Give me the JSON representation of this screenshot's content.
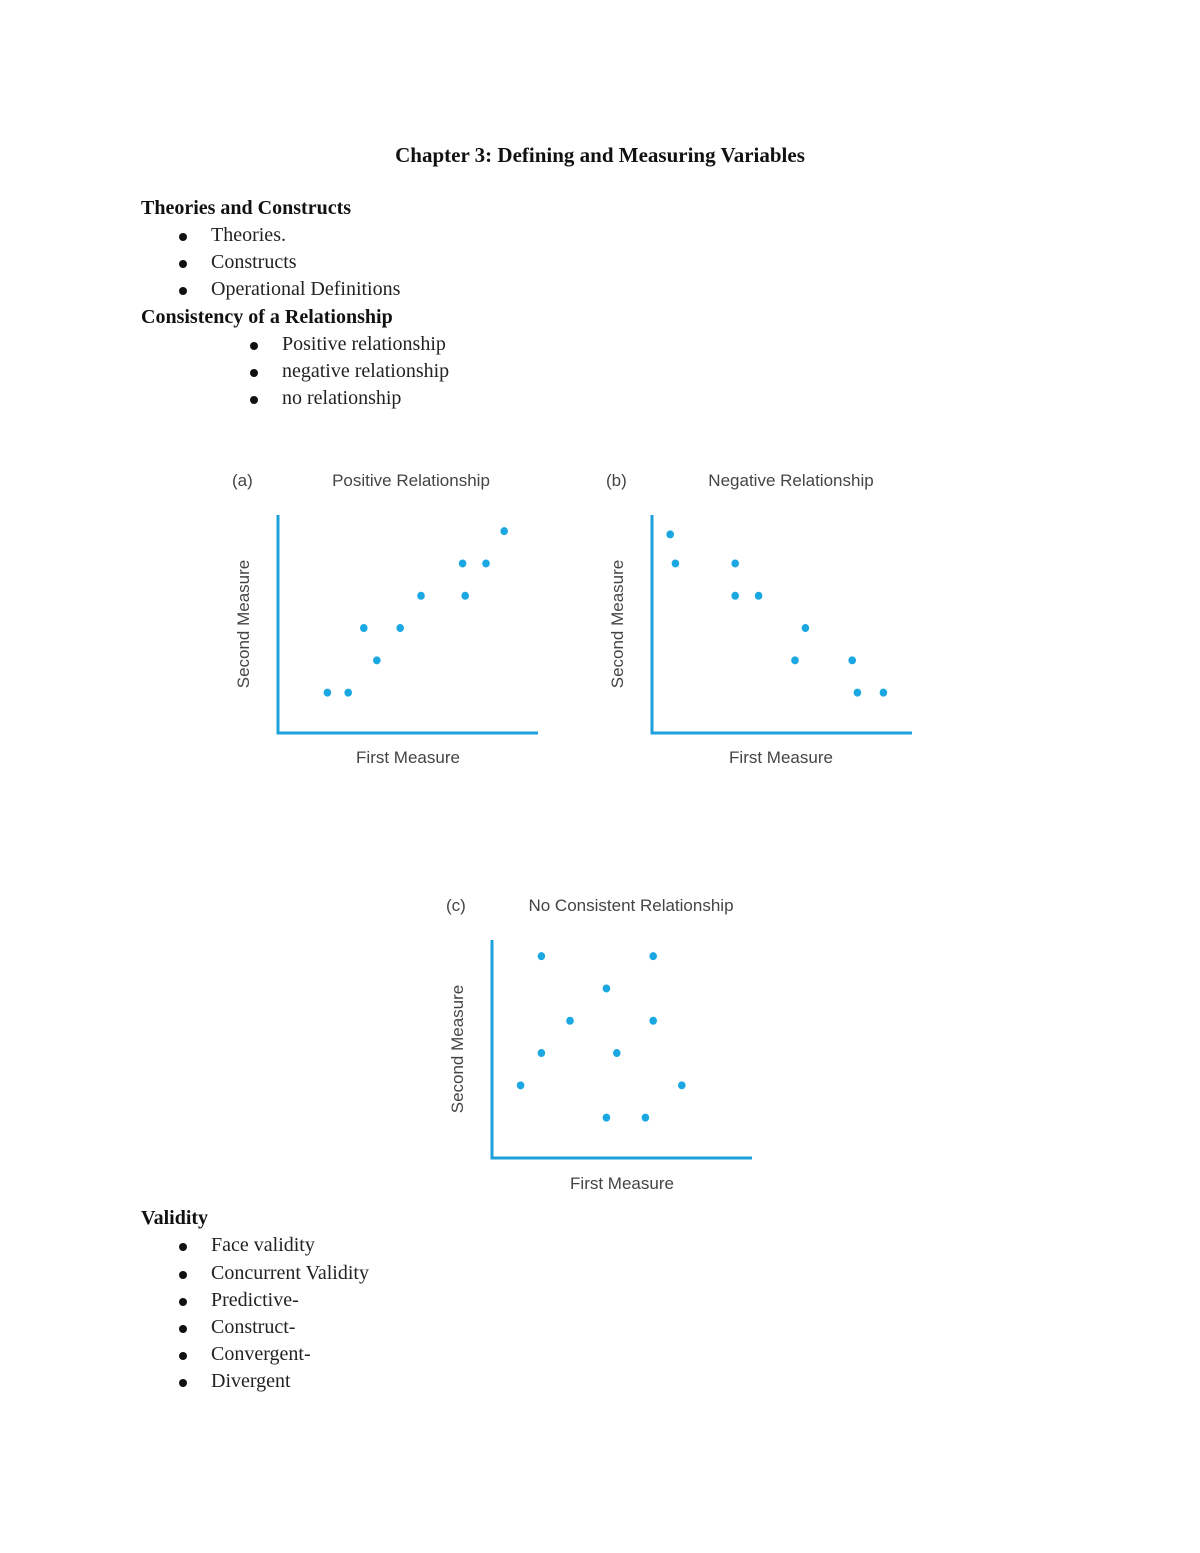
{
  "title": "Chapter 3: Defining and Measuring Variables",
  "sections": [
    {
      "heading": "Theories and Constructs",
      "items": [
        "Theories.",
        "Constructs",
        "Operational Definitions"
      ]
    },
    {
      "heading": "Consistency of a Relationship",
      "items": [
        "Positive relationship",
        "negative relationship",
        "no relationship"
      ]
    },
    {
      "heading": "Validity",
      "items": [
        "Face validity",
        "Concurrent Validity",
        "Predictive-",
        "Construct-",
        "Convergent-",
        "Divergent"
      ]
    }
  ],
  "colors": {
    "axis": "#1ba1dc",
    "point": "#1ba8e2"
  },
  "chart_data": [
    {
      "type": "scatter",
      "panel": "(a)",
      "title": "Positive Relationship",
      "xlabel": "First Measure",
      "ylabel": "Second Measure",
      "xlim": [
        0,
        10
      ],
      "ylim": [
        -0.25,
        6.5
      ],
      "grid": false,
      "ticks": false,
      "points": [
        [
          1.9,
          1
        ],
        [
          2.7,
          1
        ],
        [
          3.8,
          2
        ],
        [
          3.3,
          3
        ],
        [
          4.7,
          3
        ],
        [
          5.5,
          4
        ],
        [
          7.2,
          4
        ],
        [
          7.1,
          5
        ],
        [
          8.0,
          5
        ],
        [
          8.7,
          6
        ]
      ]
    },
    {
      "type": "scatter",
      "panel": "(b)",
      "title": "Negative Relationship",
      "xlabel": "First Measure",
      "ylabel": "Second Measure",
      "xlim": [
        0,
        10
      ],
      "ylim": [
        -0.25,
        6.5
      ],
      "grid": false,
      "ticks": false,
      "points": [
        [
          0.7,
          5.9
        ],
        [
          0.9,
          5
        ],
        [
          3.2,
          5
        ],
        [
          3.2,
          4
        ],
        [
          4.1,
          4
        ],
        [
          5.9,
          3
        ],
        [
          5.5,
          2
        ],
        [
          7.7,
          2
        ],
        [
          7.9,
          1
        ],
        [
          8.9,
          1
        ]
      ]
    },
    {
      "type": "scatter",
      "panel": "(c)",
      "title": "No Consistent Relationship",
      "xlabel": "First Measure",
      "ylabel": "Second Measure",
      "xlim": [
        0,
        10
      ],
      "ylim": [
        -0.25,
        6.5
      ],
      "grid": false,
      "ticks": false,
      "points": [
        [
          1.1,
          2
        ],
        [
          1.9,
          3
        ],
        [
          1.9,
          6
        ],
        [
          3.0,
          4
        ],
        [
          4.4,
          5
        ],
        [
          4.8,
          3
        ],
        [
          4.4,
          1
        ],
        [
          5.9,
          1
        ],
        [
          6.2,
          6
        ],
        [
          6.2,
          4
        ],
        [
          7.3,
          2
        ]
      ]
    }
  ]
}
